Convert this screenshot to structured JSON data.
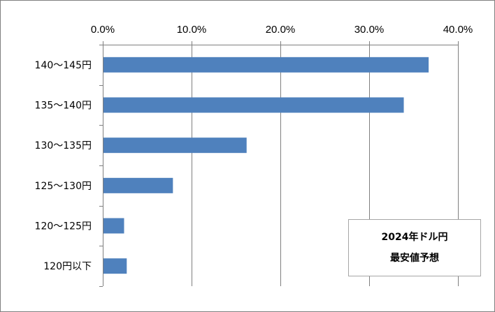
{
  "chart_data": {
    "type": "bar",
    "orientation": "horizontal",
    "categories": [
      "140～145円",
      "135～140円",
      "130～135円",
      "125～130円",
      "120～125円",
      "120円以下"
    ],
    "values": [
      36.7,
      33.9,
      16.2,
      7.9,
      2.4,
      2.7
    ],
    "unit": "%",
    "xlim": [
      0,
      40
    ],
    "xticks": [
      0,
      10,
      20,
      30,
      40
    ],
    "xtick_labels": [
      "0.0%",
      "10.0%",
      "20.0%",
      "30.0%",
      "40.0%"
    ],
    "x_axis_position": "top",
    "grid": true,
    "bar_color": "#4f81bd",
    "title": "",
    "xlabel": "",
    "ylabel": ""
  },
  "annotation": {
    "line1": "2024年ドル円",
    "line2": "最安値予想"
  }
}
